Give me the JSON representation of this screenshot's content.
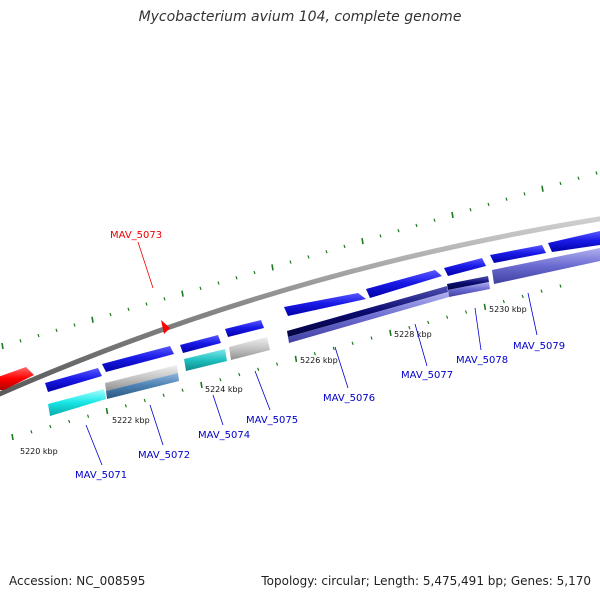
{
  "title": "Mycobacterium avium 104, complete genome",
  "footer": {
    "accession": "Accession: NC_008595",
    "meta": "Topology: circular; Length: 5,475,491 bp; Genes: 5,170"
  },
  "ruler_labels": [
    "5220 kbp",
    "5222 kbp",
    "5224 kbp",
    "5226 kbp",
    "5228 kbp",
    "5230 kbp"
  ],
  "genes": [
    {
      "id": "MAV_5071",
      "color": "#0000cc",
      "highlight": false
    },
    {
      "id": "MAV_5072",
      "color": "#0000cc",
      "highlight": false
    },
    {
      "id": "MAV_5073",
      "color": "#ff0000",
      "highlight": true
    },
    {
      "id": "MAV_5074",
      "color": "#0000cc",
      "highlight": false
    },
    {
      "id": "MAV_5075",
      "color": "#0000cc",
      "highlight": false
    },
    {
      "id": "MAV_5076",
      "color": "#0000cc",
      "highlight": false
    },
    {
      "id": "MAV_5077",
      "color": "#0000cc",
      "highlight": false
    },
    {
      "id": "MAV_5078",
      "color": "#0000cc",
      "highlight": false
    },
    {
      "id": "MAV_5079",
      "color": "#0000cc",
      "highlight": false
    }
  ],
  "colors": {
    "backbone": "#888888",
    "cds": "#1515e6",
    "highlight": "#ff0000",
    "cog_cyan": "#17e6e6",
    "cog_gray": "#bbbbbb",
    "cog_steel": "#4a7fb0",
    "cog_teal": "#20c0c0",
    "cog_navy": "#0a0a70",
    "cog_purple": "#6a6ad0",
    "tick": "#1e7a1e"
  }
}
